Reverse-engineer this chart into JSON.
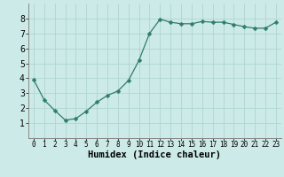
{
  "x": [
    0,
    1,
    2,
    3,
    4,
    5,
    6,
    7,
    8,
    9,
    10,
    11,
    12,
    13,
    14,
    15,
    16,
    17,
    18,
    19,
    20,
    21,
    22,
    23
  ],
  "y": [
    3.9,
    2.55,
    1.85,
    1.2,
    1.3,
    1.8,
    2.4,
    2.85,
    3.15,
    3.85,
    5.2,
    7.0,
    7.95,
    7.75,
    7.65,
    7.65,
    7.8,
    7.75,
    7.75,
    7.6,
    7.45,
    7.35,
    7.35,
    7.75
  ],
  "line_color": "#2e7d6e",
  "marker": "D",
  "marker_size": 2.5,
  "bg_color": "#cceae8",
  "grid_color": "#b0d5d2",
  "xlabel": "Humidex (Indice chaleur)",
  "ylim": [
    0,
    9
  ],
  "xlim": [
    -0.5,
    23.5
  ],
  "yticks": [
    1,
    2,
    3,
    4,
    5,
    6,
    7,
    8
  ],
  "xticks": [
    0,
    1,
    2,
    3,
    4,
    5,
    6,
    7,
    8,
    9,
    10,
    11,
    12,
    13,
    14,
    15,
    16,
    17,
    18,
    19,
    20,
    21,
    22,
    23
  ],
  "xlabel_fontsize": 7.5,
  "ytick_fontsize": 7,
  "xtick_fontsize": 5.5
}
